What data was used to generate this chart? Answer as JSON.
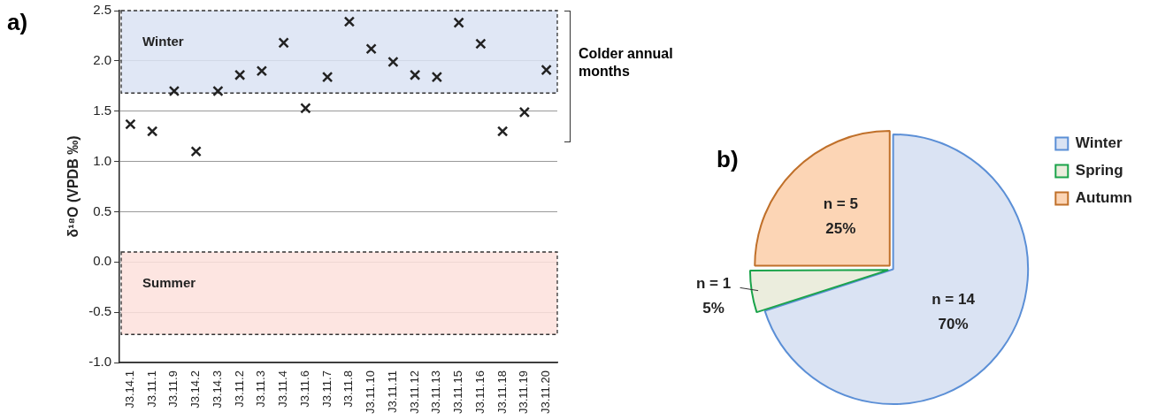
{
  "chart_data": [
    {
      "type": "scatter",
      "ylabel": "δ¹⁸O (VPDB ‰)",
      "categories": [
        "J3.14.1",
        "J3.11.1",
        "J3.11.9",
        "J3.14.2",
        "J3.14.3",
        "J3.11.2",
        "J3.11.3",
        "J3.11.4",
        "J3.11.6",
        "J3.11.7",
        "J3.11.8",
        "J3.11.10",
        "J3.11.11",
        "J3.11.12",
        "J3.11.13",
        "J3.11.15",
        "J3.11.16",
        "J3.11.18",
        "J3.11.19",
        "J3.11.20"
      ],
      "series": [
        {
          "color": "#222222",
          "values": [
            1.37,
            1.3,
            1.7,
            1.1,
            1.7,
            1.86,
            1.9,
            2.18,
            1.53,
            1.84,
            2.39,
            2.12,
            1.99,
            1.86,
            1.84,
            2.38,
            2.17,
            1.3,
            1.49,
            1.91
          ]
        }
      ],
      "marker": "cross",
      "ylim": [
        -1.0,
        2.5
      ],
      "yticks": [
        {
          "value": -1.0,
          "label": "-1.0"
        },
        {
          "value": -0.5,
          "label": "-0.5"
        },
        {
          "value": 0,
          "label": "0.0"
        },
        {
          "value": 0.5,
          "label": "0.5"
        },
        {
          "value": 1.0,
          "label": "1.0"
        },
        {
          "value": 1.5,
          "label": "1.5"
        },
        {
          "value": 2.0,
          "label": "2.0"
        },
        {
          "value": 2.5,
          "label": "2.5"
        }
      ],
      "grid": "y",
      "bands": [
        {
          "axis": "y",
          "from": 1.68,
          "to": 2.5,
          "label": "Winter",
          "color": "#dae3f3"
        },
        {
          "axis": "y",
          "from": -0.72,
          "to": 0.1,
          "label": "Summer",
          "color": "#fde0dc"
        }
      ],
      "annotations": [
        "a)",
        "Colder annual months"
      ]
    },
    {
      "type": "pie",
      "categories": [
        "Winter",
        "Spring",
        "Autumn"
      ],
      "values": [
        14,
        1,
        5
      ],
      "colors": [
        "#dae3f3",
        "#ebeddd",
        "#fcd5b5"
      ],
      "value_labels": [
        "n = 14\n70%",
        "n = 1\n5%",
        "n = 5\n25%"
      ],
      "legend": "top right",
      "annotations": [
        "b)"
      ]
    }
  ]
}
